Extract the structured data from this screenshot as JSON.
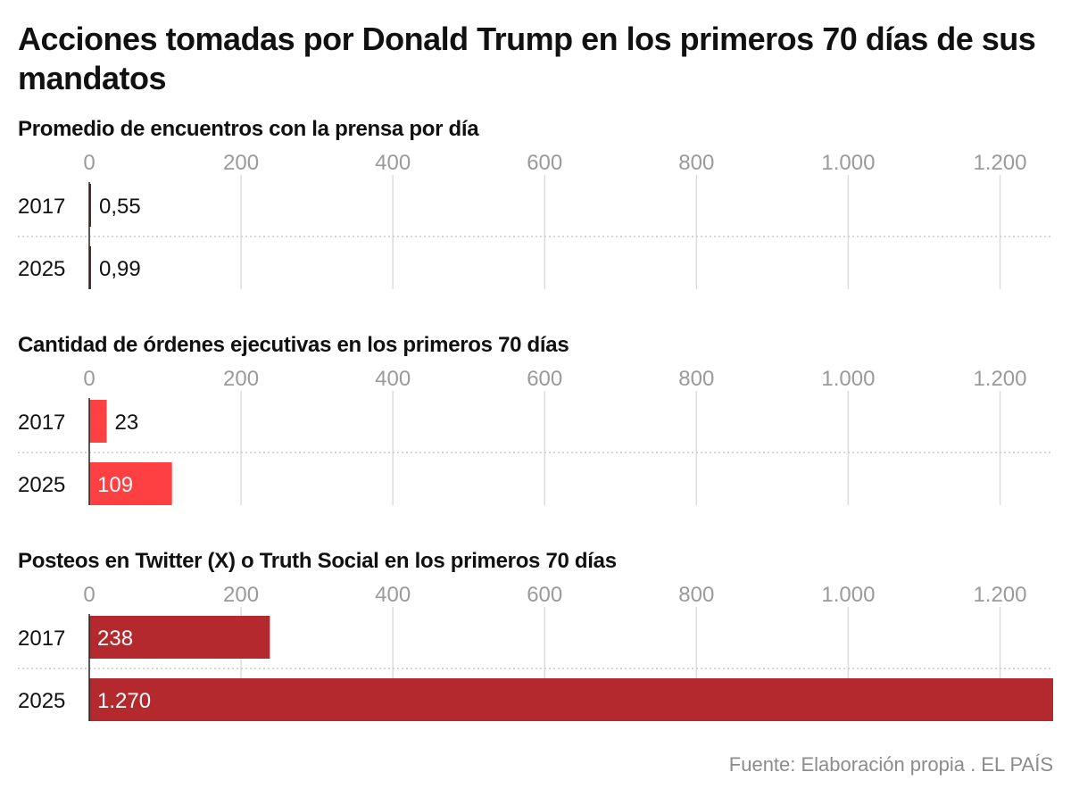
{
  "title": "Acciones tomadas por Donald Trump en los primeros 70 días de sus mandatos",
  "source": "Fuente: Elaboración propia . EL PAÍS",
  "chart_data": [
    {
      "type": "bar",
      "orientation": "horizontal",
      "title": "Promedio de encuentros con la prensa por día",
      "categories": [
        "2017",
        "2025"
      ],
      "values": [
        0.55,
        0.99
      ],
      "value_labels": [
        "0,55",
        "0,99"
      ],
      "xlim": [
        0,
        1270
      ],
      "ticks": [
        0,
        200,
        400,
        600,
        800,
        1000,
        1200
      ],
      "tick_labels": [
        "0",
        "200",
        "400",
        "600",
        "800",
        "1.000",
        "1.200"
      ],
      "grid": true,
      "colors": [
        "#8b1a1a",
        "#8b1a1a"
      ]
    },
    {
      "type": "bar",
      "orientation": "horizontal",
      "title": "Cantidad de órdenes ejecutivas en los primeros 70 días",
      "categories": [
        "2017",
        "2025"
      ],
      "values": [
        23,
        109
      ],
      "value_labels": [
        "23",
        "109"
      ],
      "xlim": [
        0,
        1270
      ],
      "ticks": [
        0,
        200,
        400,
        600,
        800,
        1000,
        1200
      ],
      "tick_labels": [
        "0",
        "200",
        "400",
        "600",
        "800",
        "1.000",
        "1.200"
      ],
      "grid": true,
      "colors": [
        "#ff4043",
        "#ff4043"
      ]
    },
    {
      "type": "bar",
      "orientation": "horizontal",
      "title": "Posteos en Twitter (X) o Truth Social en los primeros 70 días",
      "categories": [
        "2017",
        "2025"
      ],
      "values": [
        238,
        1270
      ],
      "value_labels": [
        "238",
        "1.270"
      ],
      "xlim": [
        0,
        1270
      ],
      "ticks": [
        0,
        200,
        400,
        600,
        800,
        1000,
        1200
      ],
      "tick_labels": [
        "0",
        "200",
        "400",
        "600",
        "800",
        "1.000",
        "1.200"
      ],
      "grid": true,
      "colors": [
        "#b3292e",
        "#b3292e"
      ]
    }
  ]
}
